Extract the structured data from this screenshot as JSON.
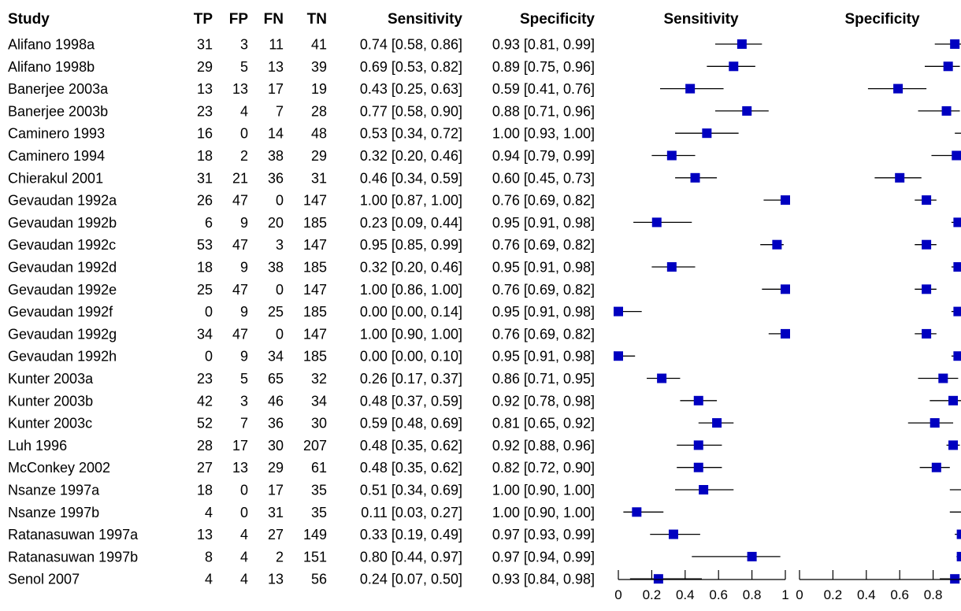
{
  "chart_data": {
    "type": "forest",
    "headers": {
      "study": "Study",
      "tp": "TP",
      "fp": "FP",
      "fn": "FN",
      "tn": "TN",
      "sensitivity": "Sensitivity",
      "specificity": "Specificity",
      "plot_sensitivity": "Sensitivity",
      "plot_specificity": "Specificity"
    },
    "axis": {
      "range": [
        0,
        1
      ],
      "ticks": [
        "0",
        "0.2",
        "0.4",
        "0.6",
        "0.8",
        "1"
      ]
    },
    "marker_color": "#0000c0",
    "rows": [
      {
        "study": "Alifano 1998a",
        "tp": 31,
        "fp": 3,
        "fn": 11,
        "tn": 41,
        "sens": 0.74,
        "sens_lo": 0.58,
        "sens_hi": 0.86,
        "spec": 0.93,
        "spec_lo": 0.81,
        "spec_hi": 0.99,
        "sens_text": "0.74 [0.58, 0.86]",
        "spec_text": "0.93 [0.81, 0.99]"
      },
      {
        "study": "Alifano 1998b",
        "tp": 29,
        "fp": 5,
        "fn": 13,
        "tn": 39,
        "sens": 0.69,
        "sens_lo": 0.53,
        "sens_hi": 0.82,
        "spec": 0.89,
        "spec_lo": 0.75,
        "spec_hi": 0.96,
        "sens_text": "0.69 [0.53, 0.82]",
        "spec_text": "0.89 [0.75, 0.96]"
      },
      {
        "study": "Banerjee 2003a",
        "tp": 13,
        "fp": 13,
        "fn": 17,
        "tn": 19,
        "sens": 0.43,
        "sens_lo": 0.25,
        "sens_hi": 0.63,
        "spec": 0.59,
        "spec_lo": 0.41,
        "spec_hi": 0.76,
        "sens_text": "0.43 [0.25, 0.63]",
        "spec_text": "0.59 [0.41, 0.76]"
      },
      {
        "study": "Banerjee 2003b",
        "tp": 23,
        "fp": 4,
        "fn": 7,
        "tn": 28,
        "sens": 0.77,
        "sens_lo": 0.58,
        "sens_hi": 0.9,
        "spec": 0.88,
        "spec_lo": 0.71,
        "spec_hi": 0.96,
        "sens_text": "0.77 [0.58, 0.90]",
        "spec_text": "0.88 [0.71, 0.96]"
      },
      {
        "study": "Caminero 1993",
        "tp": 16,
        "fp": 0,
        "fn": 14,
        "tn": 48,
        "sens": 0.53,
        "sens_lo": 0.34,
        "sens_hi": 0.72,
        "spec": 1.0,
        "spec_lo": 0.93,
        "spec_hi": 1.0,
        "sens_text": "0.53 [0.34, 0.72]",
        "spec_text": "1.00 [0.93, 1.00]"
      },
      {
        "study": "Caminero 1994",
        "tp": 18,
        "fp": 2,
        "fn": 38,
        "tn": 29,
        "sens": 0.32,
        "sens_lo": 0.2,
        "sens_hi": 0.46,
        "spec": 0.94,
        "spec_lo": 0.79,
        "spec_hi": 0.99,
        "sens_text": "0.32 [0.20, 0.46]",
        "spec_text": "0.94 [0.79, 0.99]"
      },
      {
        "study": "Chierakul 2001",
        "tp": 31,
        "fp": 21,
        "fn": 36,
        "tn": 31,
        "sens": 0.46,
        "sens_lo": 0.34,
        "sens_hi": 0.59,
        "spec": 0.6,
        "spec_lo": 0.45,
        "spec_hi": 0.73,
        "sens_text": "0.46 [0.34, 0.59]",
        "spec_text": "0.60 [0.45, 0.73]"
      },
      {
        "study": "Gevaudan 1992a",
        "tp": 26,
        "fp": 47,
        "fn": 0,
        "tn": 147,
        "sens": 1.0,
        "sens_lo": 0.87,
        "sens_hi": 1.0,
        "spec": 0.76,
        "spec_lo": 0.69,
        "spec_hi": 0.82,
        "sens_text": "1.00 [0.87, 1.00]",
        "spec_text": "0.76 [0.69, 0.82]"
      },
      {
        "study": "Gevaudan 1992b",
        "tp": 6,
        "fp": 9,
        "fn": 20,
        "tn": 185,
        "sens": 0.23,
        "sens_lo": 0.09,
        "sens_hi": 0.44,
        "spec": 0.95,
        "spec_lo": 0.91,
        "spec_hi": 0.98,
        "sens_text": "0.23 [0.09, 0.44]",
        "spec_text": "0.95 [0.91, 0.98]"
      },
      {
        "study": "Gevaudan 1992c",
        "tp": 53,
        "fp": 47,
        "fn": 3,
        "tn": 147,
        "sens": 0.95,
        "sens_lo": 0.85,
        "sens_hi": 0.99,
        "spec": 0.76,
        "spec_lo": 0.69,
        "spec_hi": 0.82,
        "sens_text": "0.95 [0.85, 0.99]",
        "spec_text": "0.76 [0.69, 0.82]"
      },
      {
        "study": "Gevaudan 1992d",
        "tp": 18,
        "fp": 9,
        "fn": 38,
        "tn": 185,
        "sens": 0.32,
        "sens_lo": 0.2,
        "sens_hi": 0.46,
        "spec": 0.95,
        "spec_lo": 0.91,
        "spec_hi": 0.98,
        "sens_text": "0.32 [0.20, 0.46]",
        "spec_text": "0.95 [0.91, 0.98]"
      },
      {
        "study": "Gevaudan 1992e",
        "tp": 25,
        "fp": 47,
        "fn": 0,
        "tn": 147,
        "sens": 1.0,
        "sens_lo": 0.86,
        "sens_hi": 1.0,
        "spec": 0.76,
        "spec_lo": 0.69,
        "spec_hi": 0.82,
        "sens_text": "1.00 [0.86, 1.00]",
        "spec_text": "0.76 [0.69, 0.82]"
      },
      {
        "study": "Gevaudan 1992f",
        "tp": 0,
        "fp": 9,
        "fn": 25,
        "tn": 185,
        "sens": 0.0,
        "sens_lo": 0.0,
        "sens_hi": 0.14,
        "spec": 0.95,
        "spec_lo": 0.91,
        "spec_hi": 0.98,
        "sens_text": "0.00 [0.00, 0.14]",
        "spec_text": "0.95 [0.91, 0.98]"
      },
      {
        "study": "Gevaudan 1992g",
        "tp": 34,
        "fp": 47,
        "fn": 0,
        "tn": 147,
        "sens": 1.0,
        "sens_lo": 0.9,
        "sens_hi": 1.0,
        "spec": 0.76,
        "spec_lo": 0.69,
        "spec_hi": 0.82,
        "sens_text": "1.00 [0.90, 1.00]",
        "spec_text": "0.76 [0.69, 0.82]"
      },
      {
        "study": "Gevaudan 1992h",
        "tp": 0,
        "fp": 9,
        "fn": 34,
        "tn": 185,
        "sens": 0.0,
        "sens_lo": 0.0,
        "sens_hi": 0.1,
        "spec": 0.95,
        "spec_lo": 0.91,
        "spec_hi": 0.98,
        "sens_text": "0.00 [0.00, 0.10]",
        "spec_text": "0.95 [0.91, 0.98]"
      },
      {
        "study": "Kunter 2003a",
        "tp": 23,
        "fp": 5,
        "fn": 65,
        "tn": 32,
        "sens": 0.26,
        "sens_lo": 0.17,
        "sens_hi": 0.37,
        "spec": 0.86,
        "spec_lo": 0.71,
        "spec_hi": 0.95,
        "sens_text": "0.26 [0.17, 0.37]",
        "spec_text": "0.86 [0.71, 0.95]"
      },
      {
        "study": "Kunter 2003b",
        "tp": 42,
        "fp": 3,
        "fn": 46,
        "tn": 34,
        "sens": 0.48,
        "sens_lo": 0.37,
        "sens_hi": 0.59,
        "spec": 0.92,
        "spec_lo": 0.78,
        "spec_hi": 0.98,
        "sens_text": "0.48 [0.37, 0.59]",
        "spec_text": "0.92 [0.78, 0.98]"
      },
      {
        "study": "Kunter 2003c",
        "tp": 52,
        "fp": 7,
        "fn": 36,
        "tn": 30,
        "sens": 0.59,
        "sens_lo": 0.48,
        "sens_hi": 0.69,
        "spec": 0.81,
        "spec_lo": 0.65,
        "spec_hi": 0.92,
        "sens_text": "0.59 [0.48, 0.69]",
        "spec_text": "0.81 [0.65, 0.92]"
      },
      {
        "study": "Luh 1996",
        "tp": 28,
        "fp": 17,
        "fn": 30,
        "tn": 207,
        "sens": 0.48,
        "sens_lo": 0.35,
        "sens_hi": 0.62,
        "spec": 0.92,
        "spec_lo": 0.88,
        "spec_hi": 0.96,
        "sens_text": "0.48 [0.35, 0.62]",
        "spec_text": "0.92 [0.88, 0.96]"
      },
      {
        "study": "McConkey 2002",
        "tp": 27,
        "fp": 13,
        "fn": 29,
        "tn": 61,
        "sens": 0.48,
        "sens_lo": 0.35,
        "sens_hi": 0.62,
        "spec": 0.82,
        "spec_lo": 0.72,
        "spec_hi": 0.9,
        "sens_text": "0.48 [0.35, 0.62]",
        "spec_text": "0.82 [0.72, 0.90]"
      },
      {
        "study": "Nsanze 1997a",
        "tp": 18,
        "fp": 0,
        "fn": 17,
        "tn": 35,
        "sens": 0.51,
        "sens_lo": 0.34,
        "sens_hi": 0.69,
        "spec": 1.0,
        "spec_lo": 0.9,
        "spec_hi": 1.0,
        "sens_text": "0.51 [0.34, 0.69]",
        "spec_text": "1.00 [0.90, 1.00]"
      },
      {
        "study": "Nsanze 1997b",
        "tp": 4,
        "fp": 0,
        "fn": 31,
        "tn": 35,
        "sens": 0.11,
        "sens_lo": 0.03,
        "sens_hi": 0.27,
        "spec": 1.0,
        "spec_lo": 0.9,
        "spec_hi": 1.0,
        "sens_text": "0.11 [0.03, 0.27]",
        "spec_text": "1.00 [0.90, 1.00]"
      },
      {
        "study": "Ratanasuwan 1997a",
        "tp": 13,
        "fp": 4,
        "fn": 27,
        "tn": 149,
        "sens": 0.33,
        "sens_lo": 0.19,
        "sens_hi": 0.49,
        "spec": 0.97,
        "spec_lo": 0.93,
        "spec_hi": 0.99,
        "sens_text": "0.33 [0.19, 0.49]",
        "spec_text": "0.97 [0.93, 0.99]"
      },
      {
        "study": "Ratanasuwan 1997b",
        "tp": 8,
        "fp": 4,
        "fn": 2,
        "tn": 151,
        "sens": 0.8,
        "sens_lo": 0.44,
        "sens_hi": 0.97,
        "spec": 0.97,
        "spec_lo": 0.94,
        "spec_hi": 0.99,
        "sens_text": "0.80 [0.44, 0.97]",
        "spec_text": "0.97 [0.94, 0.99]"
      },
      {
        "study": "Senol 2007",
        "tp": 4,
        "fp": 4,
        "fn": 13,
        "tn": 56,
        "sens": 0.24,
        "sens_lo": 0.07,
        "sens_hi": 0.5,
        "spec": 0.93,
        "spec_lo": 0.84,
        "spec_hi": 0.98,
        "sens_text": "0.24 [0.07, 0.50]",
        "spec_text": "0.93 [0.84, 0.98]"
      }
    ]
  }
}
